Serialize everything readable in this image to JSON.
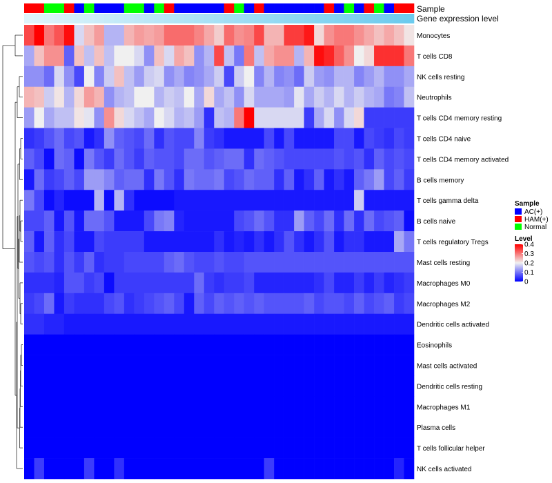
{
  "chart_data": {
    "type": "heatmap",
    "title": "",
    "annotation_labels": [
      "Sample",
      "Gene expression level"
    ],
    "rows": [
      "Monocytes",
      "T cells CD8",
      "NK cells resting",
      "Neutrophils",
      "T cells CD4 memory resting",
      "T cells CD4 naive",
      "T cells CD4 memory activated",
      "B cells memory",
      "T cells gamma delta",
      "B cells naive",
      "T cells regulatory  Tregs",
      "Mast cells resting",
      "Macrophages M0",
      "Macrophages M2",
      "Dendritic cells activated",
      "Eosinophils",
      "Mast cells activated",
      "Dendritic cells resting",
      "Macrophages M1",
      "Plasma cells",
      "T cells follicular helper",
      "NK cells activated"
    ],
    "sample_groups": [
      "H",
      "H",
      "N",
      "N",
      "H",
      "A",
      "N",
      "A",
      "A",
      "A",
      "N",
      "N",
      "A",
      "N",
      "H",
      "A",
      "A",
      "A",
      "A",
      "A",
      "H",
      "N",
      "A",
      "H",
      "A",
      "A",
      "A",
      "A",
      "A",
      "A",
      "H",
      "A",
      "N",
      "A",
      "H",
      "N",
      "A",
      "H",
      "H"
    ],
    "gene_expression_gradient": [
      "#dff4fb",
      "#6ccbee"
    ],
    "values": [
      [
        0.34,
        0.4,
        0.3,
        0.33,
        0.39,
        0.18,
        0.24,
        0.27,
        0.15,
        0.15,
        0.25,
        0.27,
        0.26,
        0.27,
        0.31,
        0.31,
        0.31,
        0.29,
        0.26,
        0.23,
        0.31,
        0.28,
        0.29,
        0.34,
        0.25,
        0.25,
        0.35,
        0.35,
        0.38,
        0.22,
        0.28,
        0.3,
        0.3,
        0.28,
        0.26,
        0.24,
        0.26,
        0.24,
        0.21
      ],
      [
        0.14,
        0.24,
        0.28,
        0.28,
        0.08,
        0.24,
        0.16,
        0.24,
        0.16,
        0.2,
        0.2,
        0.18,
        0.12,
        0.24,
        0.18,
        0.26,
        0.24,
        0.12,
        0.15,
        0.34,
        0.16,
        0.1,
        0.3,
        0.16,
        0.26,
        0.28,
        0.28,
        0.15,
        0.25,
        0.39,
        0.37,
        0.32,
        0.28,
        0.2,
        0.22,
        0.36,
        0.36,
        0.36,
        0.3
      ],
      [
        0.12,
        0.12,
        0.09,
        0.18,
        0.12,
        0.06,
        0.2,
        0.11,
        0.17,
        0.24,
        0.16,
        0.13,
        0.17,
        0.18,
        0.12,
        0.14,
        0.11,
        0.12,
        0.14,
        0.17,
        0.06,
        0.17,
        0.2,
        0.11,
        0.15,
        0.11,
        0.12,
        0.09,
        0.17,
        0.13,
        0.12,
        0.15,
        0.15,
        0.11,
        0.13,
        0.15,
        0.12,
        0.12,
        0.14
      ],
      [
        0.25,
        0.24,
        0.17,
        0.21,
        0.15,
        0.22,
        0.27,
        0.25,
        0.12,
        0.15,
        0.16,
        0.2,
        0.2,
        0.15,
        0.17,
        0.16,
        0.2,
        0.14,
        0.22,
        0.14,
        0.16,
        0.12,
        0.18,
        0.14,
        0.14,
        0.14,
        0.13,
        0.19,
        0.14,
        0.17,
        0.15,
        0.18,
        0.15,
        0.17,
        0.15,
        0.14,
        0.1,
        0.11,
        0.16
      ],
      [
        0.13,
        0.2,
        0.14,
        0.16,
        0.16,
        0.21,
        0.19,
        0.12,
        0.28,
        0.22,
        0.18,
        0.16,
        0.14,
        0.2,
        0.18,
        0.15,
        0.16,
        0.13,
        0.04,
        0.16,
        0.15,
        0.3,
        0.4,
        0.18,
        0.18,
        0.18,
        0.18,
        0.18,
        0.05,
        0.14,
        0.18,
        0.12,
        0.18,
        0.22,
        0.05,
        0.05,
        0.05,
        0.05,
        0.05
      ],
      [
        0.04,
        0.05,
        0.07,
        0.09,
        0.06,
        0.07,
        0.02,
        0.04,
        0.12,
        0.08,
        0.07,
        0.06,
        0.09,
        0.04,
        0.07,
        0.06,
        0.06,
        0.11,
        0.05,
        0.04,
        0.02,
        0.02,
        0.02,
        0.02,
        0.06,
        0.02,
        0.06,
        0.02,
        0.02,
        0.02,
        0.02,
        0.06,
        0.06,
        0.02,
        0.06,
        0.05,
        0.04,
        0.06,
        0.05
      ],
      [
        0.08,
        0.06,
        0.01,
        0.09,
        0.08,
        0.01,
        0.1,
        0.07,
        0.05,
        0.09,
        0.07,
        0.05,
        0.08,
        0.07,
        0.07,
        0.06,
        0.09,
        0.09,
        0.07,
        0.08,
        0.09,
        0.09,
        0.04,
        0.09,
        0.08,
        0.07,
        0.06,
        0.06,
        0.06,
        0.06,
        0.06,
        0.07,
        0.06,
        0.07,
        0.04,
        0.08,
        0.06,
        0.07,
        0.06
      ],
      [
        0.02,
        0.09,
        0.05,
        0.06,
        0.08,
        0.06,
        0.13,
        0.13,
        0.11,
        0.08,
        0.09,
        0.09,
        0.04,
        0.1,
        0.07,
        0.04,
        0.1,
        0.09,
        0.09,
        0.1,
        0.06,
        0.07,
        0.09,
        0.08,
        0.08,
        0.04,
        0.08,
        0.02,
        0.04,
        0.08,
        0.02,
        0.04,
        0.02,
        0.08,
        0.1,
        0.13,
        0.06,
        0.08,
        0.05
      ],
      [
        0.1,
        0.06,
        0.01,
        0.03,
        0.01,
        0.01,
        0.01,
        0.15,
        0.01,
        0.15,
        0.04,
        0.01,
        0.01,
        0.01,
        0.01,
        0.02,
        0.02,
        0.02,
        0.02,
        0.02,
        0.02,
        0.02,
        0.02,
        0.02,
        0.02,
        0.02,
        0.02,
        0.02,
        0.02,
        0.02,
        0.02,
        0.02,
        0.02,
        0.17,
        0.02,
        0.02,
        0.02,
        0.02,
        0.02
      ],
      [
        0.06,
        0.06,
        0.08,
        0.02,
        0.07,
        0.02,
        0.09,
        0.09,
        0.07,
        0.02,
        0.02,
        0.02,
        0.06,
        0.1,
        0.11,
        0.03,
        0.02,
        0.02,
        0.02,
        0.02,
        0.02,
        0.06,
        0.07,
        0.09,
        0.07,
        0.04,
        0.04,
        0.13,
        0.08,
        0.06,
        0.09,
        0.04,
        0.09,
        0.04,
        0.09,
        0.06,
        0.07,
        0.08,
        0.01
      ],
      [
        0.08,
        0.02,
        0.08,
        0.04,
        0.06,
        0.02,
        0.02,
        0.06,
        0.05,
        0.05,
        0.05,
        0.05,
        0.02,
        0.02,
        0.02,
        0.02,
        0.02,
        0.02,
        0.02,
        0.04,
        0.02,
        0.03,
        0.02,
        0.04,
        0.02,
        0.04,
        0.07,
        0.04,
        0.02,
        0.04,
        0.07,
        0.02,
        0.04,
        0.04,
        0.02,
        0.02,
        0.02,
        0.14,
        0.1
      ],
      [
        0.07,
        0.06,
        0.07,
        0.04,
        0.07,
        0.05,
        0.08,
        0.04,
        0.05,
        0.05,
        0.06,
        0.06,
        0.06,
        0.06,
        0.08,
        0.09,
        0.07,
        0.06,
        0.06,
        0.07,
        0.06,
        0.06,
        0.07,
        0.07,
        0.07,
        0.07,
        0.07,
        0.07,
        0.07,
        0.07,
        0.07,
        0.07,
        0.07,
        0.07,
        0.07,
        0.07,
        0.07,
        0.07,
        0.07
      ],
      [
        0.04,
        0.04,
        0.04,
        0.03,
        0.07,
        0.07,
        0.05,
        0.06,
        0.01,
        0.05,
        0.05,
        0.05,
        0.05,
        0.05,
        0.05,
        0.05,
        0.05,
        0.09,
        0.05,
        0.04,
        0.05,
        0.05,
        0.06,
        0.03,
        0.03,
        0.03,
        0.03,
        0.03,
        0.03,
        0.04,
        0.06,
        0.03,
        0.03,
        0.05,
        0.03,
        0.05,
        0.03,
        0.04,
        0.05
      ],
      [
        0.05,
        0.06,
        0.09,
        0.02,
        0.05,
        0.04,
        0.04,
        0.04,
        0.06,
        0.07,
        0.04,
        0.05,
        0.06,
        0.07,
        0.08,
        0.06,
        0.02,
        0.08,
        0.06,
        0.08,
        0.07,
        0.08,
        0.07,
        0.08,
        0.07,
        0.07,
        0.07,
        0.07,
        0.08,
        0.06,
        0.07,
        0.07,
        0.06,
        0.08,
        0.06,
        0.07,
        0.08,
        0.05,
        0.06
      ],
      [
        0.04,
        0.04,
        0.03,
        0.03,
        0.02,
        0.02,
        0.02,
        0.02,
        0.02,
        0.02,
        0.02,
        0.02,
        0.02,
        0.02,
        0.02,
        0.02,
        0.02,
        0.02,
        0.02,
        0.02,
        0.02,
        0.02,
        0.02,
        0.02,
        0.02,
        0.02,
        0.02,
        0.02,
        0.02,
        0.02,
        0.02,
        0.02,
        0.02,
        0.02,
        0.02,
        0.02,
        0.02,
        0.02,
        0.02
      ],
      [
        0,
        0,
        0,
        0,
        0,
        0,
        0,
        0,
        0,
        0,
        0,
        0,
        0,
        0,
        0,
        0,
        0,
        0,
        0,
        0,
        0,
        0,
        0,
        0,
        0,
        0,
        0,
        0,
        0,
        0,
        0,
        0,
        0,
        0,
        0,
        0,
        0,
        0,
        0
      ],
      [
        0,
        0,
        0,
        0,
        0,
        0,
        0,
        0,
        0,
        0,
        0,
        0,
        0,
        0,
        0,
        0,
        0,
        0,
        0,
        0,
        0,
        0,
        0,
        0,
        0,
        0,
        0,
        0,
        0,
        0,
        0,
        0,
        0,
        0,
        0,
        0,
        0,
        0,
        0
      ],
      [
        0,
        0,
        0,
        0,
        0,
        0,
        0,
        0,
        0,
        0,
        0,
        0,
        0,
        0,
        0,
        0,
        0,
        0,
        0,
        0,
        0,
        0,
        0,
        0,
        0,
        0,
        0,
        0,
        0,
        0,
        0,
        0,
        0,
        0,
        0,
        0,
        0,
        0,
        0
      ],
      [
        0,
        0,
        0,
        0,
        0,
        0,
        0,
        0,
        0,
        0,
        0,
        0,
        0,
        0,
        0,
        0,
        0,
        0,
        0,
        0,
        0,
        0,
        0,
        0,
        0,
        0,
        0,
        0,
        0,
        0,
        0,
        0,
        0,
        0,
        0,
        0,
        0,
        0,
        0
      ],
      [
        0,
        0,
        0,
        0,
        0,
        0,
        0,
        0,
        0,
        0,
        0,
        0,
        0,
        0,
        0,
        0,
        0,
        0,
        0,
        0,
        0,
        0,
        0,
        0,
        0,
        0,
        0,
        0,
        0,
        0,
        0,
        0,
        0,
        0,
        0,
        0,
        0,
        0,
        0
      ],
      [
        0,
        0,
        0,
        0,
        0,
        0,
        0,
        0,
        0,
        0,
        0,
        0,
        0,
        0,
        0,
        0,
        0,
        0,
        0,
        0,
        0,
        0,
        0,
        0,
        0,
        0,
        0,
        0,
        0,
        0,
        0,
        0,
        0,
        0,
        0,
        0,
        0,
        0,
        0
      ],
      [
        0,
        0.05,
        0,
        0,
        0,
        0,
        0.05,
        0,
        0,
        0.04,
        0,
        0,
        0,
        0,
        0,
        0,
        0,
        0,
        0,
        0,
        0,
        0,
        0,
        0,
        0.05,
        0,
        0,
        0,
        0,
        0,
        0,
        0,
        0,
        0,
        0,
        0,
        0,
        0.03,
        0
      ]
    ],
    "value_range": [
      0,
      0.4
    ],
    "color_scale": {
      "low": "#0000ff",
      "mid": "#f0f0f0",
      "high": "#ff0000",
      "mid_value": 0.2
    },
    "legend": {
      "sample_title": "Sample",
      "sample_entries": [
        {
          "key": "A",
          "label": "AC(+)",
          "color": "#0000ff"
        },
        {
          "key": "H",
          "label": "HAM(+)",
          "color": "#ff0000"
        },
        {
          "key": "N",
          "label": "Normal",
          "color": "#00ff00"
        }
      ],
      "level_title": "Level",
      "level_ticks": [
        "0.4",
        "0.3",
        "0.2",
        "0.1",
        "0"
      ],
      "level_tick_values": [
        0.4,
        0.3,
        0.2,
        0.1,
        0
      ]
    },
    "dendrogram": "rows"
  }
}
